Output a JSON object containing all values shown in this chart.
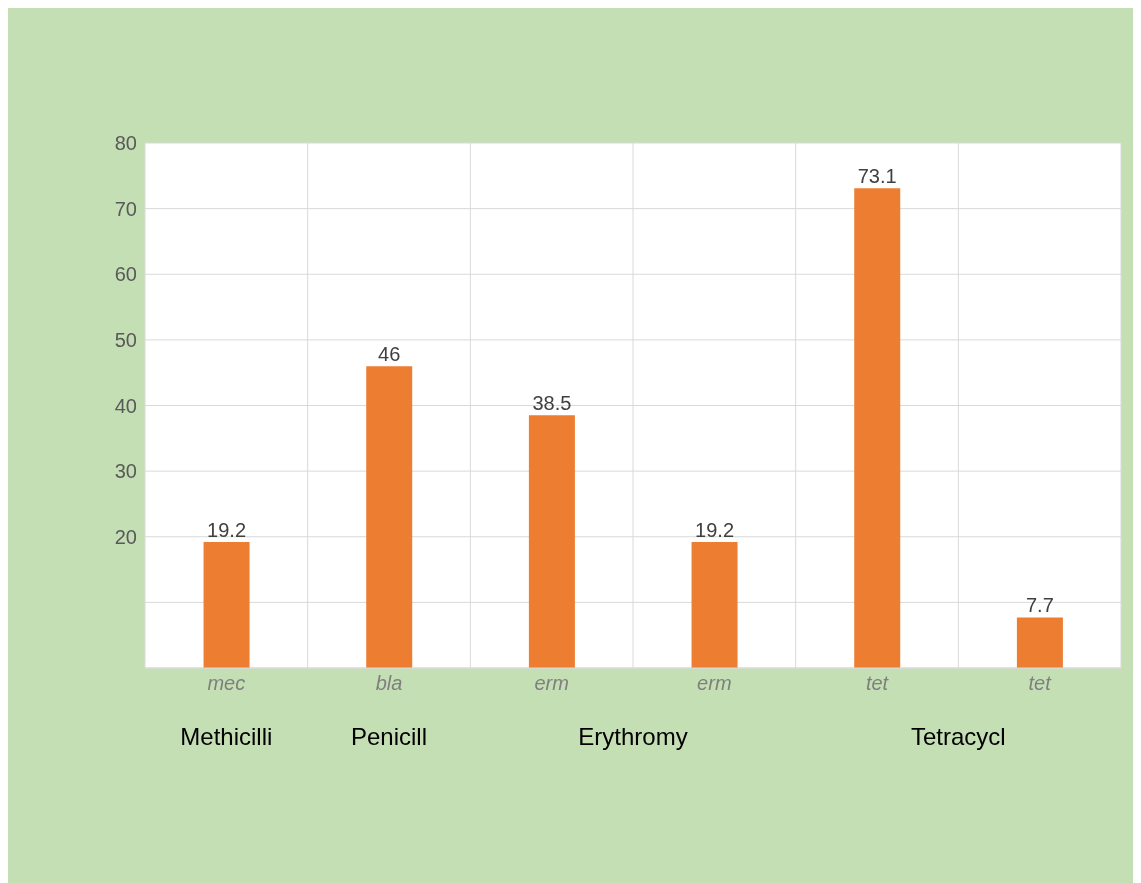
{
  "chart_data": {
    "type": "bar",
    "categories": [
      "mec",
      "bla",
      "erm",
      "erm",
      "tet",
      "tet"
    ],
    "values": [
      19.2,
      46,
      38.5,
      19.2,
      73.1,
      7.7
    ],
    "color": "#ed7d31",
    "ylim": [
      0,
      80
    ],
    "yticks": [
      {
        "value": 0,
        "label": null
      },
      {
        "value": 10,
        "label": null
      },
      20,
      30,
      40,
      50,
      60,
      70,
      80
    ],
    "grid": true,
    "data_labels": true,
    "annotations": [
      "Methicilli",
      "Penicill",
      "Erythromy",
      "Tetracycl"
    ]
  }
}
